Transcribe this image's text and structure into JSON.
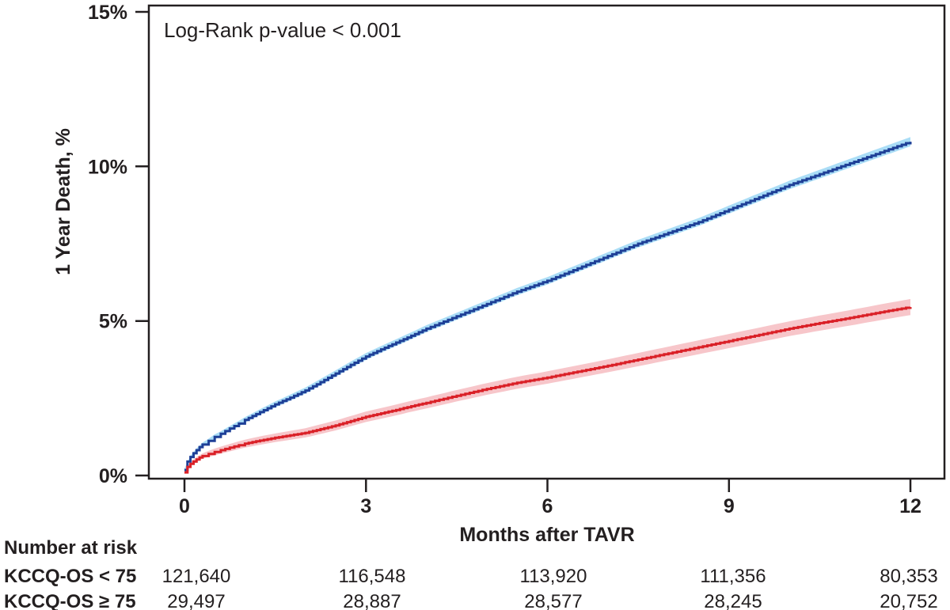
{
  "chart_data": {
    "type": "line",
    "subtype": "kaplan-meier-cumulative-incidence",
    "title": "",
    "xlabel": "Months after TAVR",
    "ylabel": "1 Year Death, %",
    "annotation": "Log-Rank p-value < 0.001",
    "xlim": [
      0,
      12
    ],
    "ylim_pct": [
      0,
      15
    ],
    "x_tick_values": [
      0,
      3,
      6,
      9,
      12
    ],
    "x_tick_labels": [
      "0",
      "3",
      "6",
      "9",
      "12"
    ],
    "y_tick_values_pct": [
      15,
      10,
      5,
      0
    ],
    "y_tick_labels": [
      "15%",
      "10%",
      "5%",
      "0%"
    ],
    "grid": false,
    "legend_position": "none (series identified in number-at-risk table)",
    "series": [
      {
        "name": "KCCQ-OS < 75",
        "color_key": "blue",
        "band_key": "light_blue",
        "points": [
          [
            0,
            0.18
          ],
          [
            0.05,
            0.45
          ],
          [
            0.1,
            0.6
          ],
          [
            0.15,
            0.72
          ],
          [
            0.2,
            0.82
          ],
          [
            0.25,
            0.92
          ],
          [
            0.3,
            1.0
          ],
          [
            0.4,
            1.12
          ],
          [
            0.5,
            1.25
          ],
          [
            0.6,
            1.35
          ],
          [
            0.75,
            1.52
          ],
          [
            0.9,
            1.68
          ],
          [
            1,
            1.8
          ],
          [
            1.25,
            2.05
          ],
          [
            1.5,
            2.3
          ],
          [
            1.75,
            2.52
          ],
          [
            2,
            2.75
          ],
          [
            2.25,
            3.02
          ],
          [
            2.5,
            3.3
          ],
          [
            2.75,
            3.58
          ],
          [
            3,
            3.85
          ],
          [
            3.25,
            4.08
          ],
          [
            3.5,
            4.3
          ],
          [
            3.75,
            4.52
          ],
          [
            4,
            4.75
          ],
          [
            4.5,
            5.15
          ],
          [
            5,
            5.55
          ],
          [
            5.5,
            5.95
          ],
          [
            6,
            6.3
          ],
          [
            6.5,
            6.7
          ],
          [
            7,
            7.1
          ],
          [
            7.5,
            7.5
          ],
          [
            8,
            7.85
          ],
          [
            8.5,
            8.2
          ],
          [
            9,
            8.6
          ],
          [
            9.5,
            9.0
          ],
          [
            10,
            9.4
          ],
          [
            10.5,
            9.75
          ],
          [
            11,
            10.1
          ],
          [
            11.5,
            10.45
          ],
          [
            12,
            10.8
          ]
        ],
        "band_halfwidth_knots": [
          [
            0,
            0.04
          ],
          [
            0.5,
            0.08
          ],
          [
            1,
            0.09
          ],
          [
            3,
            0.11
          ],
          [
            6,
            0.12
          ],
          [
            9,
            0.13
          ],
          [
            12,
            0.15
          ]
        ]
      },
      {
        "name": "KCCQ-OS ≥ 75",
        "color_key": "red",
        "band_key": "light_red",
        "points": [
          [
            0,
            0.1
          ],
          [
            0.05,
            0.28
          ],
          [
            0.1,
            0.38
          ],
          [
            0.15,
            0.45
          ],
          [
            0.2,
            0.52
          ],
          [
            0.25,
            0.58
          ],
          [
            0.3,
            0.63
          ],
          [
            0.4,
            0.7
          ],
          [
            0.5,
            0.76
          ],
          [
            0.6,
            0.82
          ],
          [
            0.75,
            0.9
          ],
          [
            0.9,
            0.98
          ],
          [
            1,
            1.03
          ],
          [
            1.25,
            1.13
          ],
          [
            1.5,
            1.22
          ],
          [
            1.75,
            1.3
          ],
          [
            2,
            1.38
          ],
          [
            2.25,
            1.5
          ],
          [
            2.5,
            1.62
          ],
          [
            2.75,
            1.76
          ],
          [
            3,
            1.9
          ],
          [
            3.25,
            2.01
          ],
          [
            3.5,
            2.12
          ],
          [
            3.75,
            2.24
          ],
          [
            4,
            2.35
          ],
          [
            4.5,
            2.58
          ],
          [
            5,
            2.8
          ],
          [
            5.5,
            3.0
          ],
          [
            6,
            3.17
          ],
          [
            6.5,
            3.36
          ],
          [
            7,
            3.55
          ],
          [
            7.5,
            3.75
          ],
          [
            8,
            3.95
          ],
          [
            8.5,
            4.15
          ],
          [
            9,
            4.35
          ],
          [
            9.5,
            4.55
          ],
          [
            10,
            4.75
          ],
          [
            10.5,
            4.93
          ],
          [
            11,
            5.1
          ],
          [
            11.5,
            5.28
          ],
          [
            12,
            5.45
          ]
        ],
        "band_halfwidth_knots": [
          [
            0,
            0.05
          ],
          [
            0.5,
            0.11
          ],
          [
            1,
            0.13
          ],
          [
            3,
            0.17
          ],
          [
            6,
            0.2
          ],
          [
            9,
            0.23
          ],
          [
            12,
            0.26
          ]
        ]
      }
    ],
    "number_at_risk": {
      "title": "Number at risk",
      "time_points_months": [
        0,
        3,
        6,
        9,
        12
      ],
      "rows": [
        {
          "label": "KCCQ-OS < 75",
          "label_color": "blue",
          "values": [
            "121,640",
            "116,548",
            "113,920",
            "111,356",
            "80,353"
          ],
          "value_colors": [
            "black",
            "blue",
            "blue",
            "blue",
            "blue"
          ]
        },
        {
          "label": "KCCQ-OS ≥ 75",
          "label_color": "red",
          "values": [
            "29,497",
            "28,887",
            "28,577",
            "28,245",
            "20,752"
          ],
          "value_colors": [
            "red",
            "red",
            "red",
            "red",
            "red"
          ]
        }
      ]
    }
  },
  "colors": {
    "blue": "#1e3f97",
    "light_blue": "#aaddf6",
    "red": "#da2027",
    "light_red": "#f7c6ca",
    "black": "#231f20",
    "axis": "#231f20"
  }
}
